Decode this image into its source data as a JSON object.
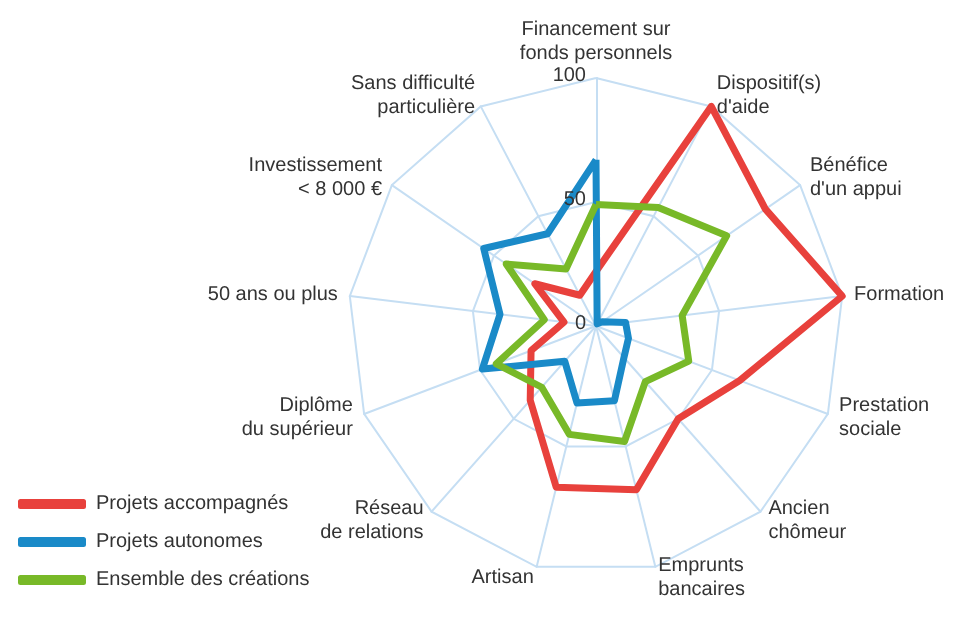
{
  "chart_data": {
    "type": "radar",
    "categories": [
      "Financement sur\nfonds personnels",
      "Dispositif(s)\nd'aide",
      "Bénéfice\nd'un appui",
      "Formation",
      "Prestation\nsociale",
      "Ancien\nchômeur",
      "Emprunts\nbancaires",
      "Artisan",
      "Réseau\nde relations",
      "Diplôme\ndu supérieur",
      "50 ans ou plus",
      "Investissement\n< 8 000 €",
      "Sans difficulté\nparticulière"
    ],
    "series": [
      {
        "name": "Projets accompagnés",
        "color": "#e8413c",
        "values": [
          22,
          100,
          83,
          100,
          62,
          50,
          68,
          67,
          40,
          28,
          13,
          30,
          14
        ]
      },
      {
        "name": "Projets autonomes",
        "color": "#1a8ac8",
        "values": [
          67,
          1,
          3,
          12,
          14,
          17,
          31,
          32,
          19,
          49,
          39,
          55,
          42
        ]
      },
      {
        "name": "Ensemble des créations",
        "color": "#78b928",
        "values": [
          49,
          54,
          64,
          35,
          40,
          30,
          48,
          45,
          33,
          43,
          21,
          44,
          26
        ]
      }
    ],
    "ylim": [
      0,
      100
    ],
    "yticks": [
      0,
      50,
      100
    ],
    "legend": "bottom left",
    "grid": true
  }
}
